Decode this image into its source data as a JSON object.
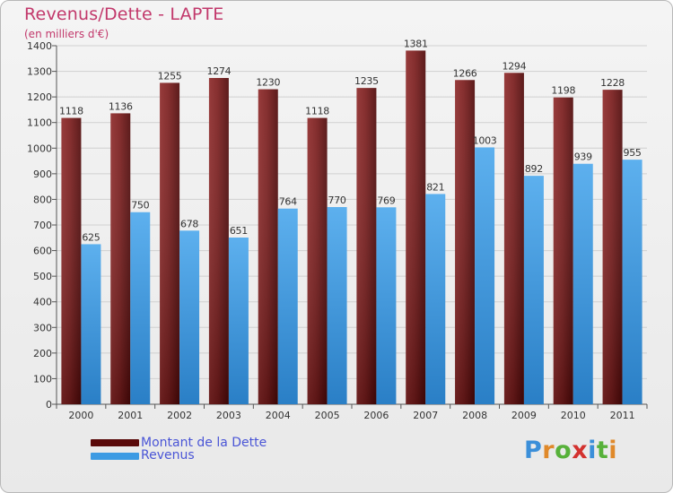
{
  "title": "Revenus/Dette - LAPTE",
  "subtitle": "(en milliers d'€)",
  "logo_text": "Proxiti",
  "colors": {
    "dette": "#7a1c1c",
    "revenus": "#4aa3e6",
    "title": "#c2386b",
    "legend_text": "#4a55d6"
  },
  "legend": [
    {
      "label": "Montant de la Dette",
      "color": "#5a0a0a"
    },
    {
      "label": "Revenus",
      "color": "#3d9be3"
    }
  ],
  "chart_data": {
    "type": "bar",
    "title": "Revenus/Dette - LAPTE",
    "ylabel": "(en milliers d'€)",
    "xlabel": "",
    "categories": [
      "2000",
      "2001",
      "2002",
      "2003",
      "2004",
      "2005",
      "2006",
      "2007",
      "2008",
      "2009",
      "2010",
      "2011"
    ],
    "series": [
      {
        "name": "Montant de la Dette",
        "values": [
          1118,
          1136,
          1255,
          1274,
          1230,
          1118,
          1235,
          1381,
          1266,
          1294,
          1198,
          1228
        ]
      },
      {
        "name": "Revenus",
        "values": [
          625,
          750,
          678,
          651,
          764,
          770,
          769,
          821,
          1003,
          892,
          939,
          955
        ]
      }
    ],
    "ylim": [
      0,
      1400
    ],
    "yticks": [
      0,
      100,
      200,
      300,
      400,
      500,
      600,
      700,
      800,
      900,
      1000,
      1100,
      1200,
      1300,
      1400
    ],
    "grid": true,
    "legend_position": "bottom-left"
  }
}
